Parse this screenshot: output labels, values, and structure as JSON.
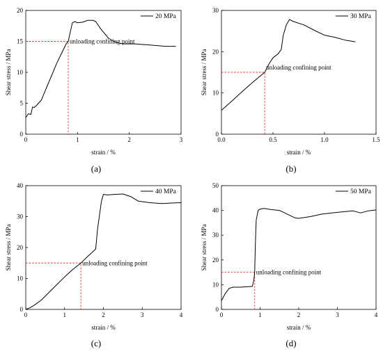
{
  "chart_data": [
    {
      "type": "line",
      "panel": "(a)",
      "legend": "20 MPa",
      "legend_position": "top-right",
      "xlabel": "strain / %",
      "ylabel": "Shear stress / MPa",
      "xlim": [
        0,
        3
      ],
      "ylim": [
        0,
        20
      ],
      "xticks": [
        "0",
        "1",
        "2",
        "3"
      ],
      "xtick_values": [
        0,
        1,
        2,
        3
      ],
      "yticks": [
        "0",
        "5",
        "10",
        "15",
        "20"
      ],
      "ytick_values": [
        0,
        5,
        10,
        15,
        20
      ],
      "annotation": "unloading confining point",
      "unload_point": [
        0.82,
        15
      ],
      "series": [
        {
          "name": "20 MPa",
          "x": [
            0,
            0.05,
            0.1,
            0.13,
            0.16,
            0.2,
            0.3,
            0.4,
            0.5,
            0.6,
            0.7,
            0.78,
            0.82,
            0.86,
            0.9,
            0.95,
            1.0,
            1.1,
            1.2,
            1.3,
            1.35,
            1.45,
            1.6,
            1.75,
            1.9,
            2.1,
            2.4,
            2.7,
            2.9
          ],
          "y": [
            2.7,
            3.3,
            3.2,
            4.4,
            4.3,
            4.6,
            5.5,
            7.5,
            9.5,
            11.5,
            13.2,
            14.6,
            15.0,
            16.5,
            18.0,
            18.2,
            18.0,
            18.1,
            18.4,
            18.4,
            18.2,
            17.0,
            15.5,
            14.8,
            14.6,
            14.6,
            14.4,
            14.2,
            14.2
          ]
        }
      ]
    },
    {
      "type": "line",
      "panel": "(b)",
      "legend": "30 MPa",
      "legend_position": "top-right",
      "xlabel": "strain / %",
      "ylabel": "Shear stress / MPa",
      "xlim": [
        0,
        1.5
      ],
      "ylim": [
        0,
        30
      ],
      "xticks": [
        "0.0",
        "0.5",
        "1.0",
        "1.5"
      ],
      "xtick_values": [
        0,
        0.5,
        1.0,
        1.5
      ],
      "yticks": [
        "0",
        "10",
        "20",
        "30"
      ],
      "ytick_values": [
        0,
        10,
        20,
        30
      ],
      "annotation": "unloading confining point",
      "unload_point": [
        0.42,
        15
      ],
      "series": [
        {
          "name": "30 MPa",
          "x": [
            0,
            0.1,
            0.2,
            0.3,
            0.4,
            0.42,
            0.46,
            0.5,
            0.55,
            0.58,
            0.6,
            0.63,
            0.66,
            0.7,
            0.8,
            0.9,
            1.0,
            1.1,
            1.2,
            1.3
          ],
          "y": [
            5.8,
            8.0,
            10.3,
            12.5,
            14.6,
            15.0,
            17.0,
            18.5,
            19.5,
            20.5,
            24.0,
            26.5,
            27.8,
            27.3,
            26.5,
            25.2,
            24.0,
            23.5,
            22.8,
            22.4
          ]
        }
      ]
    },
    {
      "type": "line",
      "panel": "(c)",
      "legend": "40 MPa",
      "legend_position": "top-right",
      "xlabel": "strain / %",
      "ylabel": "Shear stress / MPa",
      "xlim": [
        0,
        4
      ],
      "ylim": [
        0,
        40
      ],
      "xticks": [
        "0",
        "1",
        "2",
        "3",
        "4"
      ],
      "xtick_values": [
        0,
        1,
        2,
        3,
        4
      ],
      "yticks": [
        "0",
        "10",
        "20",
        "30",
        "40"
      ],
      "ytick_values": [
        0,
        10,
        20,
        30,
        40
      ],
      "annotation": "unloading confining point",
      "unload_point": [
        1.42,
        15
      ],
      "series": [
        {
          "name": "40 MPa",
          "x": [
            0,
            0.1,
            0.2,
            0.4,
            0.6,
            0.8,
            1.0,
            1.2,
            1.42,
            1.6,
            1.8,
            1.85,
            1.95,
            2.0,
            2.1,
            2.3,
            2.5,
            2.7,
            2.9,
            3.2,
            3.5,
            3.8,
            4.0
          ],
          "y": [
            0,
            0.5,
            1.2,
            3.0,
            5.5,
            8.0,
            10.5,
            12.8,
            15.0,
            17.2,
            19.5,
            26.0,
            35.0,
            37.2,
            37.0,
            37.2,
            37.3,
            36.5,
            35.0,
            34.5,
            34.2,
            34.4,
            34.5
          ]
        }
      ]
    },
    {
      "type": "line",
      "panel": "(d)",
      "legend": "50 MPa",
      "legend_position": "top-right",
      "xlabel": "strain / %",
      "ylabel": "Shear stress / MPa",
      "xlim": [
        0,
        4
      ],
      "ylim": [
        0,
        50
      ],
      "xticks": [
        "0",
        "1",
        "2",
        "3",
        "4"
      ],
      "xtick_values": [
        0,
        1,
        2,
        3,
        4
      ],
      "yticks": [
        "0",
        "10",
        "20",
        "30",
        "40",
        "50"
      ],
      "ytick_values": [
        0,
        10,
        20,
        30,
        40,
        50
      ],
      "annotation": "unloading confining point",
      "unload_point": [
        0.86,
        15
      ],
      "series": [
        {
          "name": "50 MPa",
          "x": [
            0,
            0.1,
            0.2,
            0.3,
            0.5,
            0.7,
            0.8,
            0.84,
            0.86,
            0.88,
            0.9,
            0.95,
            1.0,
            1.1,
            1.3,
            1.5,
            1.7,
            1.9,
            2.0,
            2.3,
            2.6,
            3.0,
            3.4,
            3.6,
            3.8,
            4.0
          ],
          "y": [
            3.5,
            6.5,
            8.5,
            9.0,
            9.0,
            9.2,
            9.3,
            12.0,
            15.0,
            27.0,
            36.0,
            40.0,
            40.5,
            40.8,
            40.3,
            40.0,
            38.5,
            37.0,
            36.8,
            37.5,
            38.5,
            39.2,
            39.8,
            39.0,
            39.8,
            40.2
          ]
        }
      ]
    }
  ]
}
